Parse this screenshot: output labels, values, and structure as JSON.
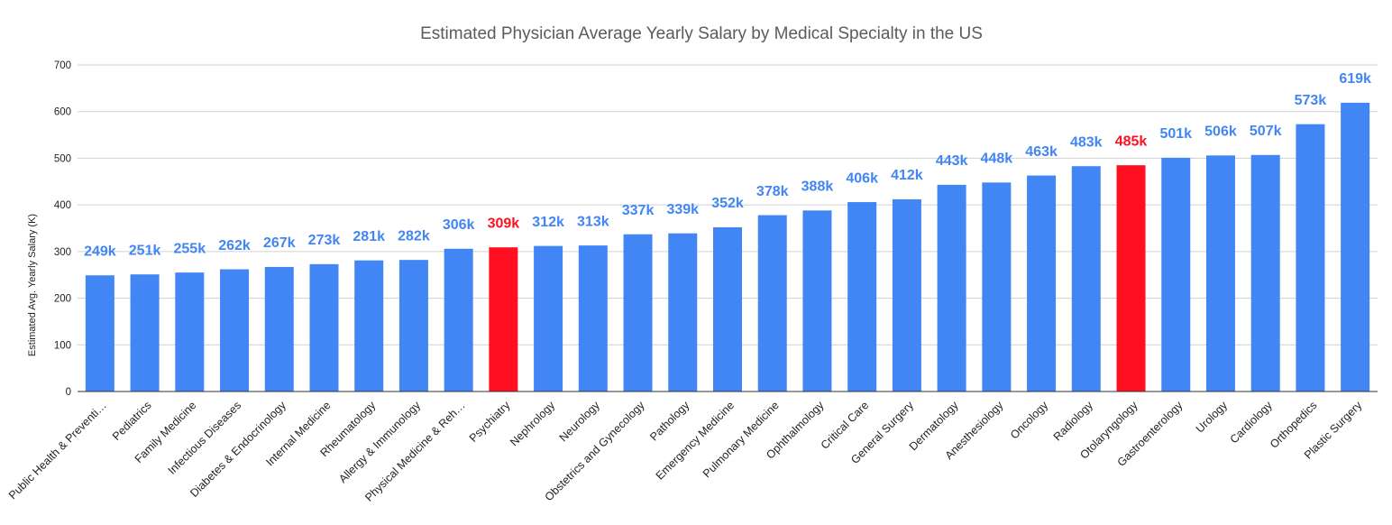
{
  "chart_data": {
    "type": "bar",
    "title": "Estimated Physician Average Yearly Salary by Medical Specialty in the US",
    "xlabel": "",
    "ylabel": "Estimated Avg. Yearly Salary (K)",
    "ylim": [
      0,
      700
    ],
    "yticks": [
      0,
      100,
      200,
      300,
      400,
      500,
      600,
      700
    ],
    "grid": true,
    "categories": [
      "Public Health & Preventi…",
      "Pediatrics",
      "Family Medicine",
      "Infectious Diseases",
      "Diabetes & Endocrinology",
      "Internal Medicine",
      "Rheumatology",
      "Allergy & Immunology",
      "Physical Medicine & Reh…",
      "Psychiatry",
      "Nephrology",
      "Neurology",
      "Obstetrics and Gynecology",
      "Pathology",
      "Emergency Medicine",
      "Pulmonary Medicine",
      "Ophthalmology",
      "Critical Care",
      "General Surgery",
      "Dermatology",
      "Anesthesiology",
      "Oncology",
      "Radiology",
      "Otolaryngology",
      "Gastroenterology",
      "Urology",
      "Cardiology",
      "Orthopedics",
      "Plastic Surgery"
    ],
    "values": [
      249,
      251,
      255,
      262,
      267,
      273,
      281,
      282,
      306,
      309,
      312,
      313,
      337,
      339,
      352,
      378,
      388,
      406,
      412,
      443,
      448,
      463,
      483,
      485,
      501,
      506,
      507,
      573,
      619
    ],
    "data_labels": [
      "249k",
      "251k",
      "255k",
      "262k",
      "267k",
      "273k",
      "281k",
      "282k",
      "306k",
      "309k",
      "312k",
      "313k",
      "337k",
      "339k",
      "352k",
      "378k",
      "388k",
      "406k",
      "412k",
      "443k",
      "448k",
      "463k",
      "483k",
      "485k",
      "501k",
      "506k",
      "507k",
      "573k",
      "619k"
    ],
    "highlighted": [
      "Psychiatry",
      "Otolaryngology"
    ],
    "colors": {
      "bar": "#4285f4",
      "highlight": "#ff0f1f",
      "label": "#4285f4",
      "highlight_label": "#ff0f1f"
    }
  }
}
